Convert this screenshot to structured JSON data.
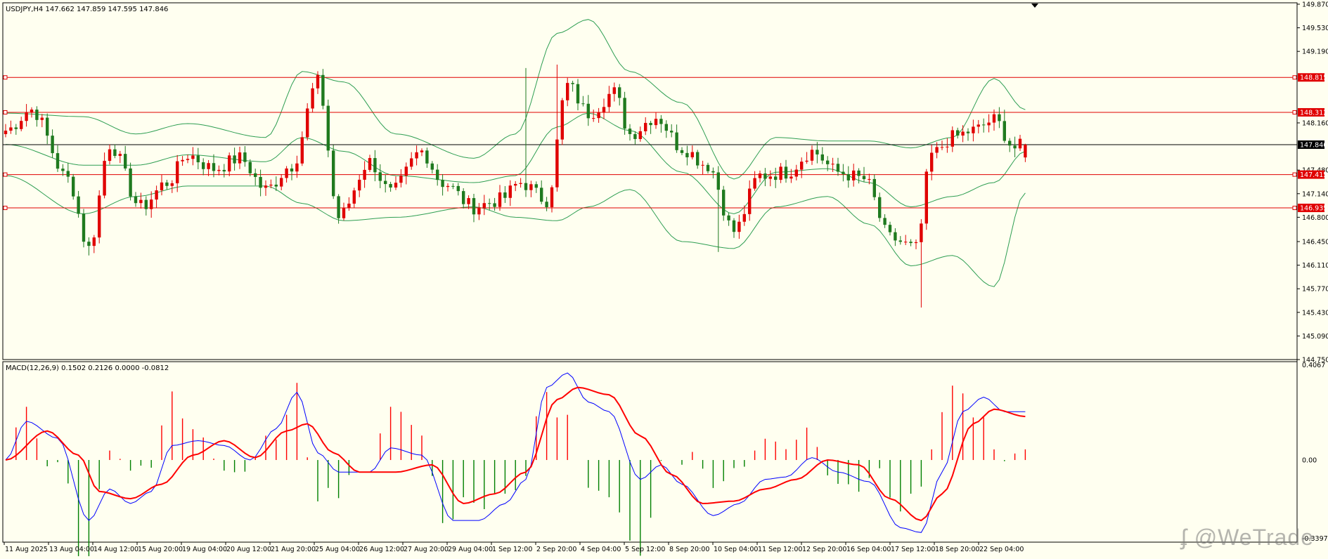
{
  "main": {
    "header": "USDJPY,H4  147.662 147.859 147.595 147.846",
    "symbol": "USDJPY",
    "timeframe": "H4",
    "ohlc": {
      "open": 147.662,
      "high": 147.859,
      "low": 147.595,
      "close": 147.846
    }
  },
  "macd": {
    "header": "MACD(12,26,9) 0.1502 0.2126 0.0000 -0.0812",
    "params": [
      12,
      26,
      9
    ],
    "values": [
      0.1502,
      0.2126,
      0.0,
      -0.0812
    ]
  },
  "watermark": "@WeTrade",
  "colors": {
    "background": "#fffff0",
    "bull": "#e00000",
    "bear": "#1f7a1f",
    "bollinger": "#2e9e52",
    "level": "#e00000",
    "price_line": "#000000",
    "macd_line": "#0000ff",
    "signal_line": "#ff0000",
    "hist_pos": "#ff0000",
    "hist_neg": "#008000"
  },
  "chart_data": [
    {
      "type": "candlestick",
      "title": "USDJPY,H4",
      "ylim": [
        144.75,
        149.89
      ],
      "price_ticks": [
        {
          "label": "149.870",
          "value": 149.87
        },
        {
          "label": "149.530",
          "value": 149.53
        },
        {
          "label": "149.190",
          "value": 149.19
        },
        {
          "label": "148.160",
          "value": 148.16
        },
        {
          "label": "147.480",
          "value": 147.48
        },
        {
          "label": "147.140",
          "value": 147.14
        },
        {
          "label": "146.800",
          "value": 146.8
        },
        {
          "label": "146.450",
          "value": 146.45
        },
        {
          "label": "146.110",
          "value": 146.11
        },
        {
          "label": "145.770",
          "value": 145.77
        },
        {
          "label": "145.430",
          "value": 145.43
        },
        {
          "label": "145.090",
          "value": 145.09
        },
        {
          "label": "144.750",
          "value": 144.75
        }
      ],
      "levels": [
        {
          "label": "148.815",
          "value": 148.815
        },
        {
          "label": "148.312",
          "value": 148.312
        },
        {
          "label": "147.415",
          "value": 147.415
        },
        {
          "label": "146.935",
          "value": 146.935
        }
      ],
      "current_price": {
        "label": "147.846",
        "value": 147.846
      },
      "x_labels": [
        "11 Aug 2025",
        "13 Aug 04:00",
        "14 Aug 12:00",
        "15 Aug 20:00",
        "19 Aug 04:00",
        "20 Aug 12:00",
        "21 Aug 20:00",
        "25 Aug 04:00",
        "26 Aug 12:00",
        "27 Aug 20:00",
        "29 Aug 04:00",
        "1 Sep 12:00",
        "2 Sep 20:00",
        "4 Sep 04:00",
        "5 Sep 12:00",
        "8 Sep 20:00",
        "10 Sep 04:00",
        "11 Sep 12:00",
        "12 Sep 20:00",
        "16 Sep 04:00",
        "17 Sep 12:00",
        "18 Sep 20:00",
        "22 Sep 04:00"
      ],
      "anchors": [
        [
          0,
          148.05
        ],
        [
          5,
          148.35
        ],
        [
          12,
          147.35
        ],
        [
          16,
          146.35
        ],
        [
          20,
          147.85
        ],
        [
          26,
          146.95
        ],
        [
          31,
          147.3
        ],
        [
          35,
          147.7
        ],
        [
          40,
          147.5
        ],
        [
          45,
          147.65
        ],
        [
          50,
          147.2
        ],
        [
          55,
          147.55
        ],
        [
          60,
          148.75
        ],
        [
          64,
          146.8
        ],
        [
          70,
          147.6
        ],
        [
          74,
          147.15
        ],
        [
          80,
          147.75
        ],
        [
          84,
          147.3
        ],
        [
          90,
          146.95
        ],
        [
          95,
          147.05
        ],
        [
          99,
          147.3
        ],
        [
          104,
          147.05
        ],
        [
          108,
          148.7
        ],
        [
          112,
          148.3
        ],
        [
          117,
          148.6
        ],
        [
          120,
          148.0
        ],
        [
          125,
          148.25
        ],
        [
          130,
          147.8
        ],
        [
          135,
          147.55
        ],
        [
          140,
          146.6
        ],
        [
          145,
          147.4
        ],
        [
          150,
          147.45
        ],
        [
          155,
          147.75
        ],
        [
          160,
          147.45
        ],
        [
          165,
          147.35
        ],
        [
          170,
          146.5
        ],
        [
          175,
          146.35
        ],
        [
          178,
          147.7
        ],
        [
          182,
          147.95
        ],
        [
          186,
          148.05
        ],
        [
          190,
          148.2
        ],
        [
          194,
          147.8
        ],
        [
          196,
          147.846
        ]
      ],
      "wicks": [
        {
          "i": 176,
          "low": 145.5
        },
        {
          "i": 137,
          "low": 146.3
        },
        {
          "i": 16,
          "low": 146.25
        },
        {
          "i": 100,
          "high": 148.95
        },
        {
          "i": 106,
          "high": 149.0
        },
        {
          "i": 192,
          "high": 148.35
        }
      ],
      "bands_anchors": [
        {
          "i": 0,
          "mid": 147.85,
          "half": 0.45
        },
        {
          "i": 15,
          "mid": 147.55,
          "half": 0.7
        },
        {
          "i": 25,
          "mid": 147.55,
          "half": 0.45
        },
        {
          "i": 35,
          "mid": 147.7,
          "half": 0.45
        },
        {
          "i": 50,
          "mid": 147.6,
          "half": 0.35
        },
        {
          "i": 57,
          "mid": 147.95,
          "half": 0.95
        },
        {
          "i": 65,
          "mid": 147.75,
          "half": 1.0
        },
        {
          "i": 75,
          "mid": 147.4,
          "half": 0.6
        },
        {
          "i": 90,
          "mid": 147.3,
          "half": 0.35
        },
        {
          "i": 98,
          "mid": 147.4,
          "half": 0.6
        },
        {
          "i": 106,
          "mid": 148.1,
          "half": 1.35
        },
        {
          "i": 112,
          "mid": 148.3,
          "half": 1.35
        },
        {
          "i": 120,
          "mid": 148.05,
          "half": 0.85
        },
        {
          "i": 130,
          "mid": 147.45,
          "half": 1.0
        },
        {
          "i": 140,
          "mid": 146.85,
          "half": 0.5
        },
        {
          "i": 148,
          "mid": 147.45,
          "half": 0.5
        },
        {
          "i": 158,
          "mid": 147.5,
          "half": 0.4
        },
        {
          "i": 166,
          "mid": 147.3,
          "half": 0.6
        },
        {
          "i": 174,
          "mid": 146.95,
          "half": 0.85
        },
        {
          "i": 182,
          "mid": 147.1,
          "half": 0.85
        },
        {
          "i": 190,
          "mid": 147.3,
          "half": 1.5
        },
        {
          "i": 196,
          "mid": 147.75,
          "half": 0.6
        }
      ]
    },
    {
      "type": "histogram+line",
      "title": "MACD(12,26,9)",
      "ylim": [
        -0.3397,
        0.4067
      ],
      "ticks": [
        {
          "label": "0.4067",
          "value": 0.4067
        },
        {
          "label": "0.00",
          "value": 0.0
        },
        {
          "label": "-0.3397",
          "value": -0.3397
        }
      ],
      "macd_anchors": [
        [
          0,
          0.0
        ],
        [
          4,
          0.16
        ],
        [
          10,
          0.09
        ],
        [
          16,
          -0.25
        ],
        [
          20,
          -0.12
        ],
        [
          24,
          -0.18
        ],
        [
          28,
          -0.13
        ],
        [
          32,
          0.06
        ],
        [
          37,
          0.08
        ],
        [
          42,
          0.06
        ],
        [
          47,
          0.0
        ],
        [
          52,
          0.13
        ],
        [
          56,
          0.28
        ],
        [
          60,
          0.03
        ],
        [
          64,
          -0.05
        ],
        [
          70,
          -0.05
        ],
        [
          74,
          0.05
        ],
        [
          80,
          0.02
        ],
        [
          86,
          -0.25
        ],
        [
          91,
          -0.25
        ],
        [
          96,
          -0.18
        ],
        [
          100,
          -0.08
        ],
        [
          104,
          0.3
        ],
        [
          108,
          0.36
        ],
        [
          112,
          0.24
        ],
        [
          116,
          0.2
        ],
        [
          122,
          -0.08
        ],
        [
          126,
          -0.02
        ],
        [
          130,
          -0.1
        ],
        [
          136,
          -0.23
        ],
        [
          141,
          -0.18
        ],
        [
          146,
          -0.08
        ],
        [
          150,
          -0.07
        ],
        [
          155,
          0.01
        ],
        [
          160,
          -0.05
        ],
        [
          166,
          -0.09
        ],
        [
          172,
          -0.28
        ],
        [
          176,
          -0.3
        ],
        [
          180,
          -0.05
        ],
        [
          184,
          0.2
        ],
        [
          188,
          0.26
        ],
        [
          192,
          0.2
        ]
      ],
      "signal_anchors": [
        [
          0,
          0.0
        ],
        [
          8,
          0.12
        ],
        [
          14,
          0.02
        ],
        [
          18,
          -0.13
        ],
        [
          24,
          -0.16
        ],
        [
          30,
          -0.1
        ],
        [
          36,
          0.02
        ],
        [
          42,
          0.08
        ],
        [
          48,
          0.01
        ],
        [
          54,
          0.12
        ],
        [
          58,
          0.15
        ],
        [
          63,
          0.03
        ],
        [
          68,
          -0.05
        ],
        [
          75,
          -0.05
        ],
        [
          82,
          -0.02
        ],
        [
          88,
          -0.18
        ],
        [
          94,
          -0.14
        ],
        [
          100,
          -0.05
        ],
        [
          106,
          0.25
        ],
        [
          110,
          0.3
        ],
        [
          116,
          0.27
        ],
        [
          122,
          0.1
        ],
        [
          128,
          -0.06
        ],
        [
          134,
          -0.18
        ],
        [
          140,
          -0.17
        ],
        [
          146,
          -0.12
        ],
        [
          152,
          -0.08
        ],
        [
          158,
          0.0
        ],
        [
          164,
          -0.02
        ],
        [
          170,
          -0.16
        ],
        [
          176,
          -0.25
        ],
        [
          180,
          -0.14
        ],
        [
          186,
          0.15
        ],
        [
          190,
          0.21
        ],
        [
          196,
          0.18
        ]
      ]
    }
  ]
}
